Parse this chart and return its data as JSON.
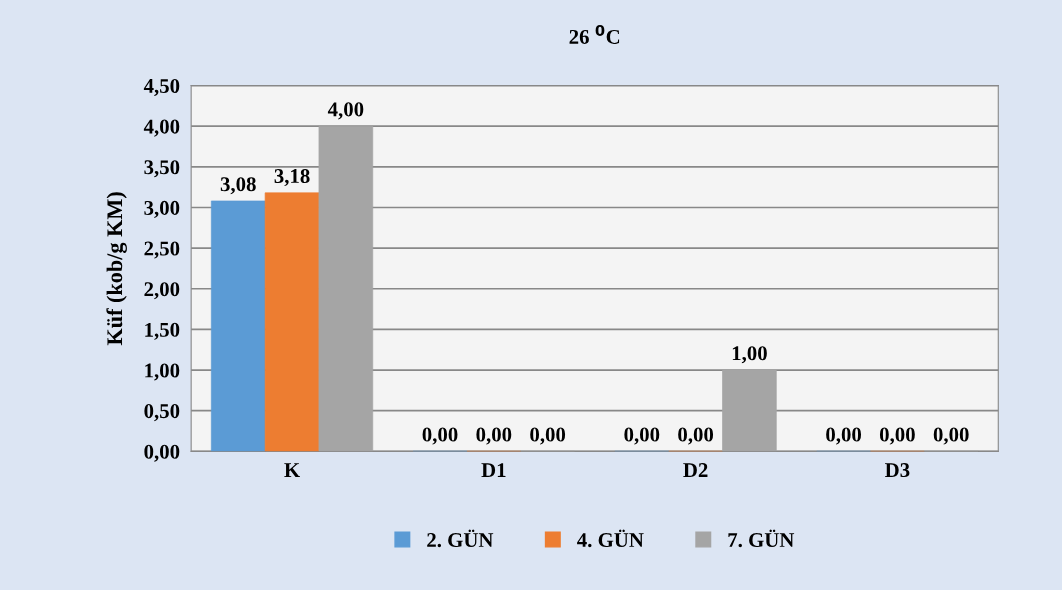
{
  "chart_data": {
    "type": "bar",
    "title": "26 $^{0}$C",
    "ylabel": "Küf (kob/g KM)",
    "categories": [
      "K",
      "D1",
      "D2",
      "D3"
    ],
    "series": [
      {
        "name": "2. GÜN",
        "color": "#5b9bd5",
        "values": [
          3.08,
          0,
          0,
          0
        ],
        "value_labels": [
          "3,08",
          "0,00",
          "0,00",
          "0,00"
        ]
      },
      {
        "name": "4. GÜN",
        "color": "#ed7d31",
        "values": [
          3.18,
          0,
          0,
          0
        ],
        "value_labels": [
          "3,18",
          "0,00",
          "0,00",
          "0,00"
        ]
      },
      {
        "name": "7. GÜN",
        "color": "#a5a5a5",
        "values": [
          4.0,
          0,
          1.0,
          0
        ],
        "value_labels": [
          "4,00",
          "0,00",
          "1,00",
          "0,00"
        ]
      }
    ],
    "ylim": [
      0,
      4.5
    ],
    "yticks": [
      {
        "value": 0,
        "label": "0,00"
      },
      {
        "value": 0.5,
        "label": "0,50"
      },
      {
        "value": 1.0,
        "label": "1,00"
      },
      {
        "value": 1.5,
        "label": "1,50"
      },
      {
        "value": 2.0,
        "label": "2,00"
      },
      {
        "value": 2.5,
        "label": "2,50"
      },
      {
        "value": 3.0,
        "label": "3,00"
      },
      {
        "value": 3.5,
        "label": "3,50"
      },
      {
        "value": 4.0,
        "label": "4,00"
      },
      {
        "value": 4.5,
        "label": "4,50"
      }
    ],
    "grid": "y",
    "legend": "bottom"
  }
}
